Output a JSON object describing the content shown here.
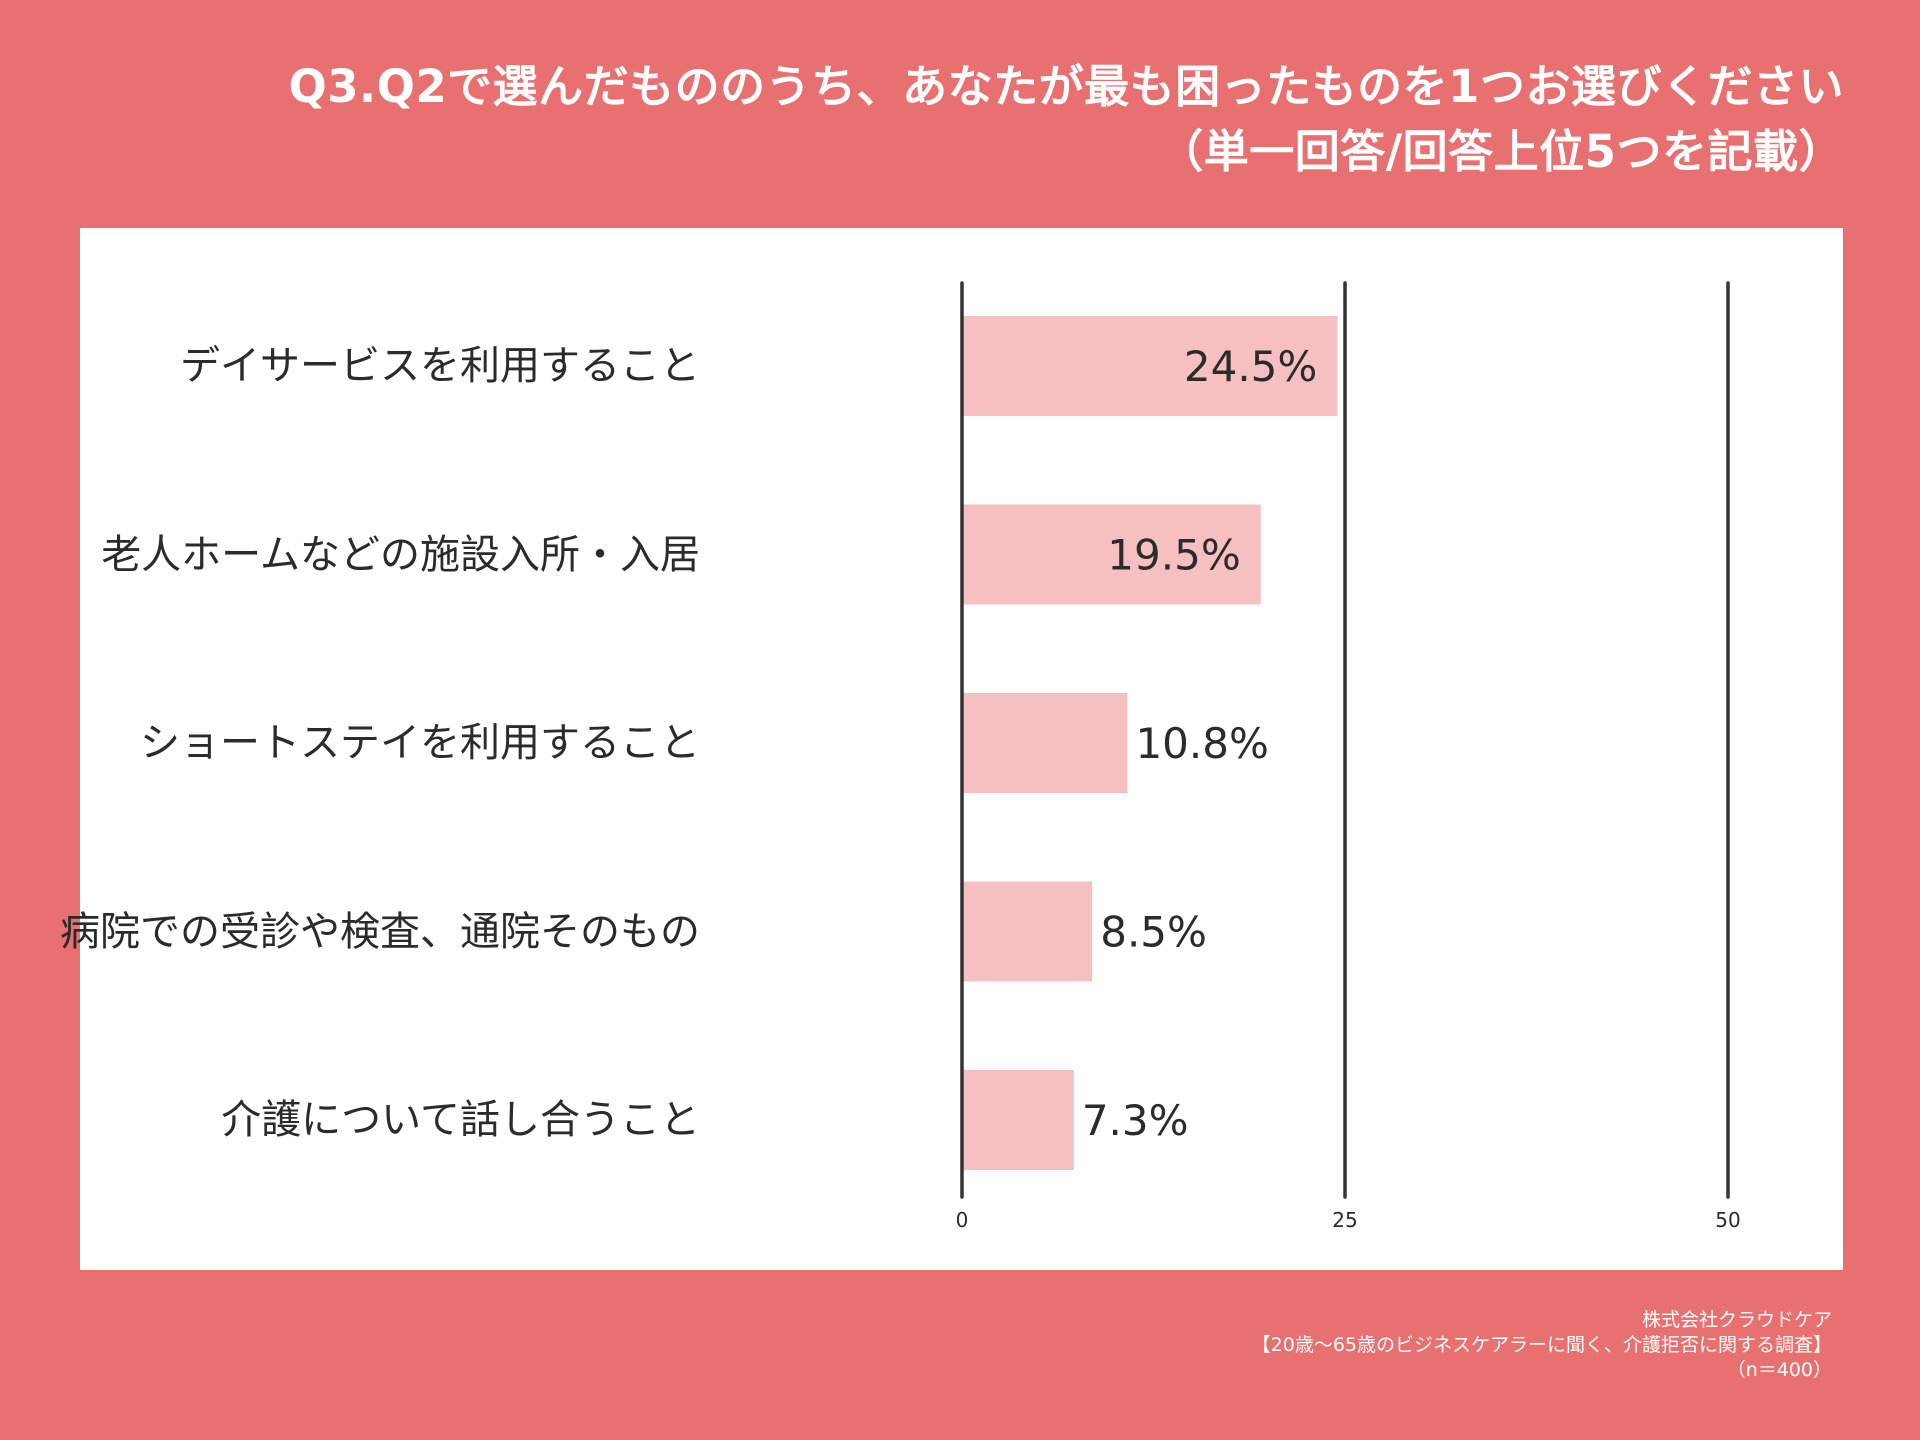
{
  "title_lines": [
    "Q3.Q2で選んだもののうち、あなたが最も困ったものを1つお選びください",
    "（単一回答/回答上位5つを記載）"
  ],
  "chart_data": {
    "type": "bar",
    "orientation": "horizontal",
    "categories": [
      "デイサービスを利用すること",
      "老人ホームなどの施設入所・入居",
      "ショートステイを利用すること",
      "病院での受診や検査、通院そのもの",
      "介護について話し合うこと"
    ],
    "values": [
      24.5,
      19.5,
      10.8,
      8.5,
      7.3
    ],
    "data_labels": [
      "24.5%",
      "19.5%",
      "10.8%",
      "8.5%",
      "7.3%"
    ],
    "xlim": [
      0,
      50
    ],
    "x_ticks": [
      0,
      25,
      50
    ],
    "x_tick_labels": [
      "0",
      "25",
      "50"
    ],
    "grid": true,
    "bar_color": "#f7c0c0"
  },
  "footer": {
    "company": "株式会社クラウドケア",
    "survey": "【20歳～65歳のビジネスケアラーに聞く、介護拒否に関する調査】",
    "sample": "（n＝400）"
  },
  "colors": {
    "background": "#e87070",
    "panel": "#ffffff",
    "grid_line": "#333333",
    "text": "#2b2b2b"
  }
}
